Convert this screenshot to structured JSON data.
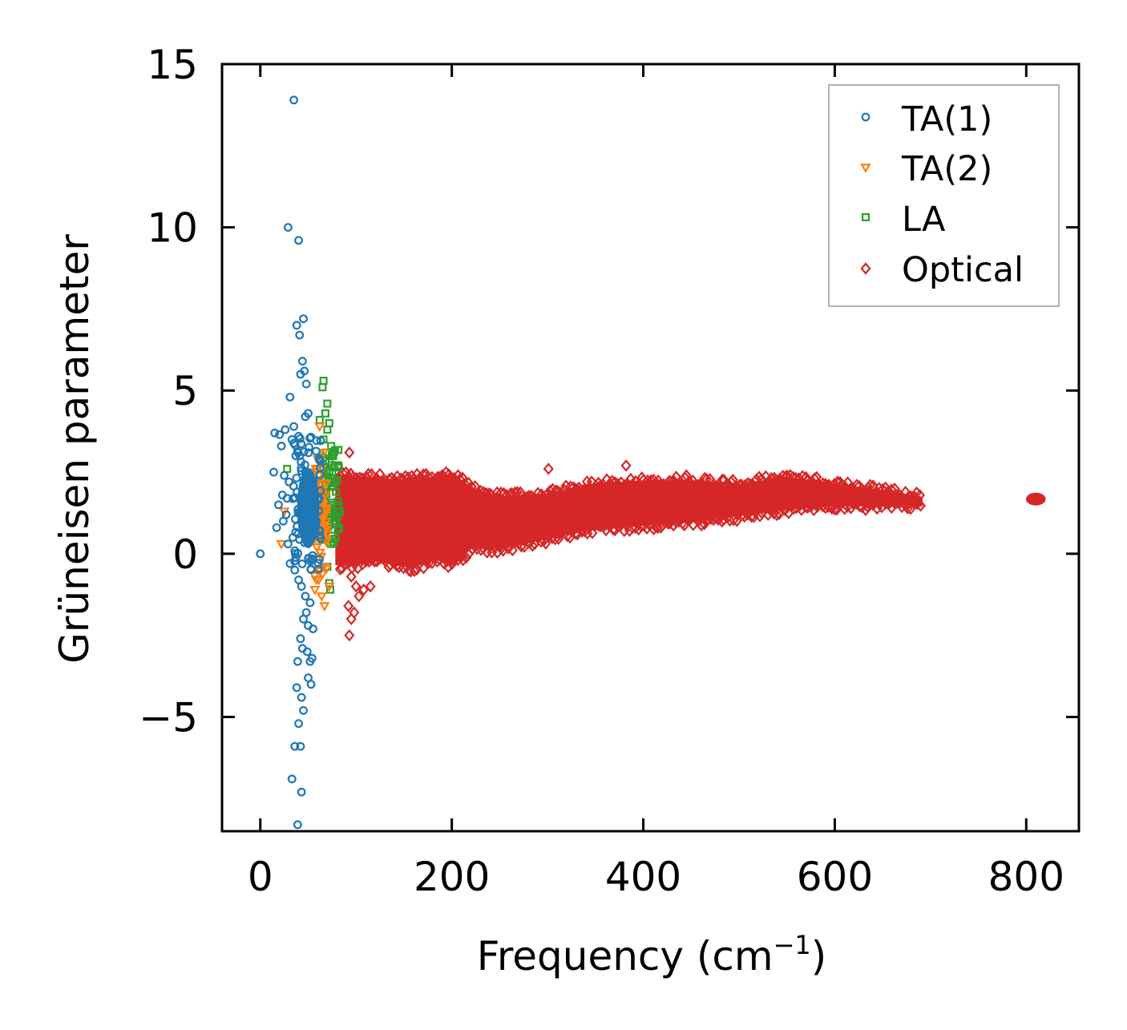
{
  "chart_data": {
    "type": "scatter",
    "title": "",
    "xlabel": "Frequency (cm",
    "xlabel_sup": "−1",
    "xlabel_close": ")",
    "ylabel": "Grüneisen parameter",
    "xlim": [
      -40,
      855
    ],
    "ylim": [
      -8.5,
      15
    ],
    "xticks": [
      0,
      200,
      400,
      600,
      800
    ],
    "xtick_labels": [
      "0",
      "200",
      "400",
      "600",
      "800"
    ],
    "yticks": [
      -5,
      0,
      5,
      10,
      15
    ],
    "ytick_labels": [
      "−5",
      "0",
      "5",
      "10",
      "15"
    ],
    "grid": false,
    "legend_position": "top-right",
    "series": [
      {
        "name": "TA(1)",
        "marker": "circle",
        "color": "#1f77b4",
        "points": [
          [
            0,
            0
          ],
          [
            35,
            13.9
          ],
          [
            29,
            10
          ],
          [
            40,
            9.6
          ],
          [
            45,
            7.2
          ],
          [
            38,
            7.0
          ],
          [
            41,
            6.7
          ],
          [
            44,
            5.9
          ],
          [
            46,
            5.6
          ],
          [
            42,
            5.5
          ],
          [
            48,
            5.2
          ],
          [
            31,
            4.8
          ],
          [
            50,
            4.3
          ],
          [
            47,
            4.2
          ],
          [
            35,
            3.9
          ],
          [
            26,
            3.8
          ],
          [
            15,
            3.7
          ],
          [
            20,
            3.65
          ],
          [
            40,
            3.6
          ],
          [
            33,
            3.5
          ],
          [
            22,
            3.3
          ],
          [
            37,
            3.0
          ],
          [
            14,
            2.5
          ],
          [
            25,
            2.4
          ],
          [
            30,
            2.2
          ],
          [
            23,
            1.8
          ],
          [
            28,
            1.7
          ],
          [
            19,
            1.5
          ],
          [
            27,
            1.2
          ],
          [
            24,
            1.0
          ],
          [
            17,
            0.8
          ],
          [
            34,
            0.5
          ],
          [
            29,
            0.3
          ],
          [
            31,
            -0.3
          ],
          [
            36,
            -0.5
          ],
          [
            40,
            -0.8
          ],
          [
            43,
            -1.0
          ],
          [
            47,
            -1.3
          ],
          [
            52,
            -1.5
          ],
          [
            48,
            -1.8
          ],
          [
            45,
            -2.0
          ],
          [
            50,
            -2.2
          ],
          [
            55,
            -2.3
          ],
          [
            42,
            -2.6
          ],
          [
            44,
            -2.9
          ],
          [
            49,
            -3.0
          ],
          [
            39,
            -3.3
          ],
          [
            52,
            -3.3
          ],
          [
            54,
            -3.2
          ],
          [
            50,
            -3.8
          ],
          [
            53,
            -4.0
          ],
          [
            38,
            -4.1
          ],
          [
            43,
            -4.4
          ],
          [
            45,
            -4.8
          ],
          [
            40,
            -5.2
          ],
          [
            36,
            -5.9
          ],
          [
            42,
            -5.9
          ],
          [
            33,
            -6.9
          ],
          [
            43,
            -7.3
          ],
          [
            39,
            -8.3
          ]
        ]
      },
      {
        "name": "TA(2)",
        "marker": "triangle-down",
        "color": "#ff7f0e",
        "points": [
          [
            62,
            3.9
          ],
          [
            66,
            3.1
          ],
          [
            60,
            2.9
          ],
          [
            64,
            2.6
          ],
          [
            25,
            1.3
          ],
          [
            58,
            2.2
          ],
          [
            68,
            1.8
          ],
          [
            55,
            1.6
          ],
          [
            22,
            0.3
          ],
          [
            63,
            1.1
          ],
          [
            70,
            0.6
          ],
          [
            59,
            0.2
          ],
          [
            66,
            -0.4
          ],
          [
            61,
            -0.8
          ],
          [
            57,
            -1.1
          ],
          [
            64,
            -1.3
          ],
          [
            67,
            -1.6
          ],
          [
            72,
            -1.0
          ]
        ]
      },
      {
        "name": "LA",
        "marker": "square",
        "color": "#2ca02c",
        "points": [
          [
            66,
            5.3
          ],
          [
            65,
            5.1
          ],
          [
            70,
            4.6
          ],
          [
            68,
            4.3
          ],
          [
            62,
            4.1
          ],
          [
            72,
            4.0
          ],
          [
            70,
            3.8
          ],
          [
            66,
            3.5
          ],
          [
            74,
            3.3
          ],
          [
            69,
            3.1
          ],
          [
            72,
            2.8
          ],
          [
            75,
            2.5
          ],
          [
            77,
            2.2
          ],
          [
            79,
            1.9
          ],
          [
            81,
            1.6
          ],
          [
            83,
            1.3
          ],
          [
            78,
            1.0
          ],
          [
            82,
            0.8
          ],
          [
            74,
            0.3
          ],
          [
            70,
            -0.4
          ],
          [
            72,
            -0.9
          ],
          [
            73,
            -1.1
          ],
          [
            28,
            2.6
          ]
        ]
      },
      {
        "name": "Optical",
        "marker": "diamond",
        "color": "#d62728",
        "points": [
          [
            93,
            3.1
          ],
          [
            301,
            2.6
          ],
          [
            382,
            2.7
          ],
          [
            445,
            2.4
          ],
          [
            95,
            -0.7
          ],
          [
            100,
            -1.0
          ],
          [
            103,
            -1.3
          ],
          [
            108,
            -1.1
          ],
          [
            115,
            -1.0
          ],
          [
            92,
            -1.6
          ],
          [
            95,
            -2.0
          ],
          [
            98,
            -1.8
          ],
          [
            93,
            -2.5
          ],
          [
            160,
            -0.1
          ],
          [
            175,
            -0.2
          ],
          [
            210,
            0.3
          ],
          [
            250,
            0.2
          ]
        ],
        "envelope": {
          "x": [
            80,
            100,
            120,
            140,
            160,
            180,
            200,
            220,
            250,
            300,
            350,
            400,
            450,
            500,
            550,
            600,
            650,
            690
          ],
          "upper": [
            2.4,
            2.3,
            2.3,
            2.2,
            2.3,
            2.3,
            2.4,
            2.0,
            1.7,
            1.8,
            2.1,
            2.2,
            2.2,
            2.1,
            2.3,
            2.1,
            1.9,
            1.7
          ],
          "lower": [
            -0.3,
            -0.3,
            -0.2,
            -0.3,
            -0.4,
            -0.1,
            -0.3,
            0.2,
            0.2,
            0.5,
            0.8,
            0.9,
            1.0,
            1.2,
            1.4,
            1.5,
            1.5,
            1.5
          ]
        },
        "cluster": {
          "x": [
            803,
            817
          ],
          "y": [
            1.6,
            1.75
          ]
        }
      }
    ]
  }
}
